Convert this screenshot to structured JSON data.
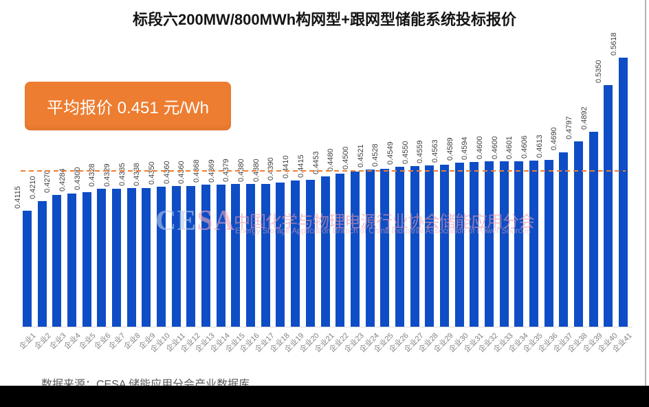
{
  "title": "标段六200MW/800MWh构网型+跟网型储能系统投标报价",
  "average_box": {
    "label": "平均报价 0.451 元/Wh"
  },
  "source_note": "数据来源：CESA 储能应用分会产业数据库",
  "watermark": {
    "logo_ce": "CE",
    "logo_sa": "SA",
    "cn_text": "中国化学与物理电源行业协会储能应用分会",
    "en_text": "Energy Storage Application Branch of China Industrial Association of Power Sources"
  },
  "colors": {
    "bar": "#0E4DC5",
    "accent_orange": "#ED7D31",
    "value_label": "#3f3f3f",
    "category_label": "#808080",
    "source_text": "#595959"
  },
  "chart_data": {
    "type": "bar",
    "title": "标段六200MW/800MWh构网型+跟网型储能系统投标报价",
    "categories": [
      "企业1",
      "企业2",
      "企业3",
      "企业4",
      "企业5",
      "企业6",
      "企业7",
      "企业8",
      "企业9",
      "企业10",
      "企业11",
      "企业12",
      "企业13",
      "企业14",
      "企业15",
      "企业16",
      "企业17",
      "企业18",
      "企业19",
      "企业20",
      "企业21",
      "企业22",
      "企业23",
      "企业24",
      "企业25",
      "企业26",
      "企业27",
      "企业28",
      "企业29",
      "企业30",
      "企业31",
      "企业32",
      "企业33",
      "企业34",
      "企业35",
      "企业36",
      "企业37",
      "企业38",
      "企业39",
      "企业40",
      "企业41"
    ],
    "values": [
      0.4115,
      0.421,
      0.427,
      0.4284,
      0.43,
      0.4328,
      0.4329,
      0.4335,
      0.4338,
      0.435,
      0.436,
      0.436,
      0.4368,
      0.4369,
      0.4379,
      0.438,
      0.438,
      0.439,
      0.441,
      0.4415,
      0.4453,
      0.448,
      0.45,
      0.4521,
      0.4528,
      0.4549,
      0.455,
      0.4559,
      0.4563,
      0.4589,
      0.4594,
      0.46,
      0.46,
      0.4601,
      0.4606,
      0.4613,
      0.469,
      0.4797,
      0.4892,
      0.535,
      0.5618
    ],
    "value_label_decimals": 4,
    "average": 0.451,
    "average_line": {
      "style": "dashed",
      "color": "#ED7D31"
    },
    "unit": "元/Wh",
    "xlabel": "",
    "ylabel": "",
    "ylim": [
      0.2976,
      0.59
    ],
    "grid": false,
    "legend": "none",
    "bar_label_rotation": -90,
    "category_label_rotation": -45
  }
}
